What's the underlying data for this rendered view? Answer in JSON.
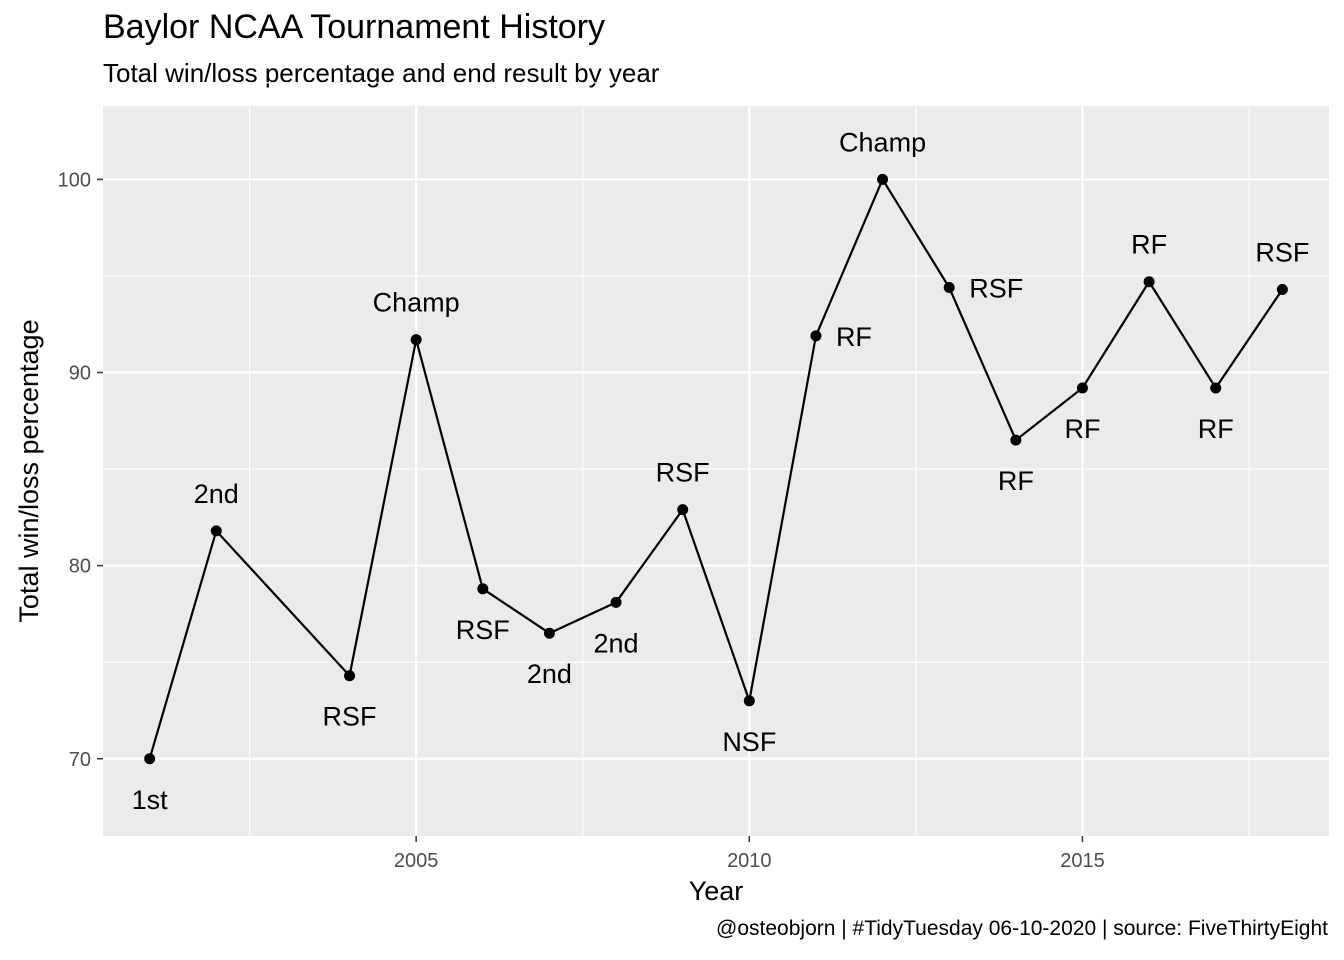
{
  "chart_data": {
    "type": "line",
    "title": "Baylor NCAA Tournament History",
    "subtitle": "Total win/loss percentage and end result by year",
    "caption": "@osteobjorn | #TidyTuesday 06-10-2020 | source: FiveThirtyEight",
    "xlabel": "Year",
    "ylabel": "Total win/loss percentage",
    "xlim": [
      2000.3,
      2018.7
    ],
    "ylim": [
      66,
      103.8
    ],
    "x_ticks": [
      2005,
      2010,
      2015
    ],
    "y_ticks": [
      70,
      80,
      90,
      100
    ],
    "grid": true,
    "background": "#ebebeb",
    "line_color": "#000000",
    "points": [
      {
        "x": 2001,
        "y": 70.0,
        "label": "1st",
        "label_pos": "below"
      },
      {
        "x": 2002,
        "y": 81.8,
        "label": "2nd",
        "label_pos": "above"
      },
      {
        "x": 2004,
        "y": 74.3,
        "label": "RSF",
        "label_pos": "below"
      },
      {
        "x": 2005,
        "y": 91.7,
        "label": "Champ",
        "label_pos": "above"
      },
      {
        "x": 2006,
        "y": 78.8,
        "label": "RSF",
        "label_pos": "below"
      },
      {
        "x": 2007,
        "y": 76.5,
        "label": "2nd",
        "label_pos": "below"
      },
      {
        "x": 2008,
        "y": 78.1,
        "label": "2nd",
        "label_pos": "below"
      },
      {
        "x": 2009,
        "y": 82.9,
        "label": "RSF",
        "label_pos": "above"
      },
      {
        "x": 2010,
        "y": 73.0,
        "label": "NSF",
        "label_pos": "below"
      },
      {
        "x": 2011,
        "y": 91.9,
        "label": "RF",
        "label_pos": "right"
      },
      {
        "x": 2012,
        "y": 100.0,
        "label": "Champ",
        "label_pos": "above"
      },
      {
        "x": 2013,
        "y": 94.4,
        "label": "RSF",
        "label_pos": "right"
      },
      {
        "x": 2014,
        "y": 86.5,
        "label": "RF",
        "label_pos": "below"
      },
      {
        "x": 2015,
        "y": 89.2,
        "label": "RF",
        "label_pos": "below"
      },
      {
        "x": 2016,
        "y": 94.7,
        "label": "RF",
        "label_pos": "above"
      },
      {
        "x": 2017,
        "y": 89.2,
        "label": "RF",
        "label_pos": "below"
      },
      {
        "x": 2018,
        "y": 94.3,
        "label": "RSF",
        "label_pos": "above"
      }
    ]
  }
}
